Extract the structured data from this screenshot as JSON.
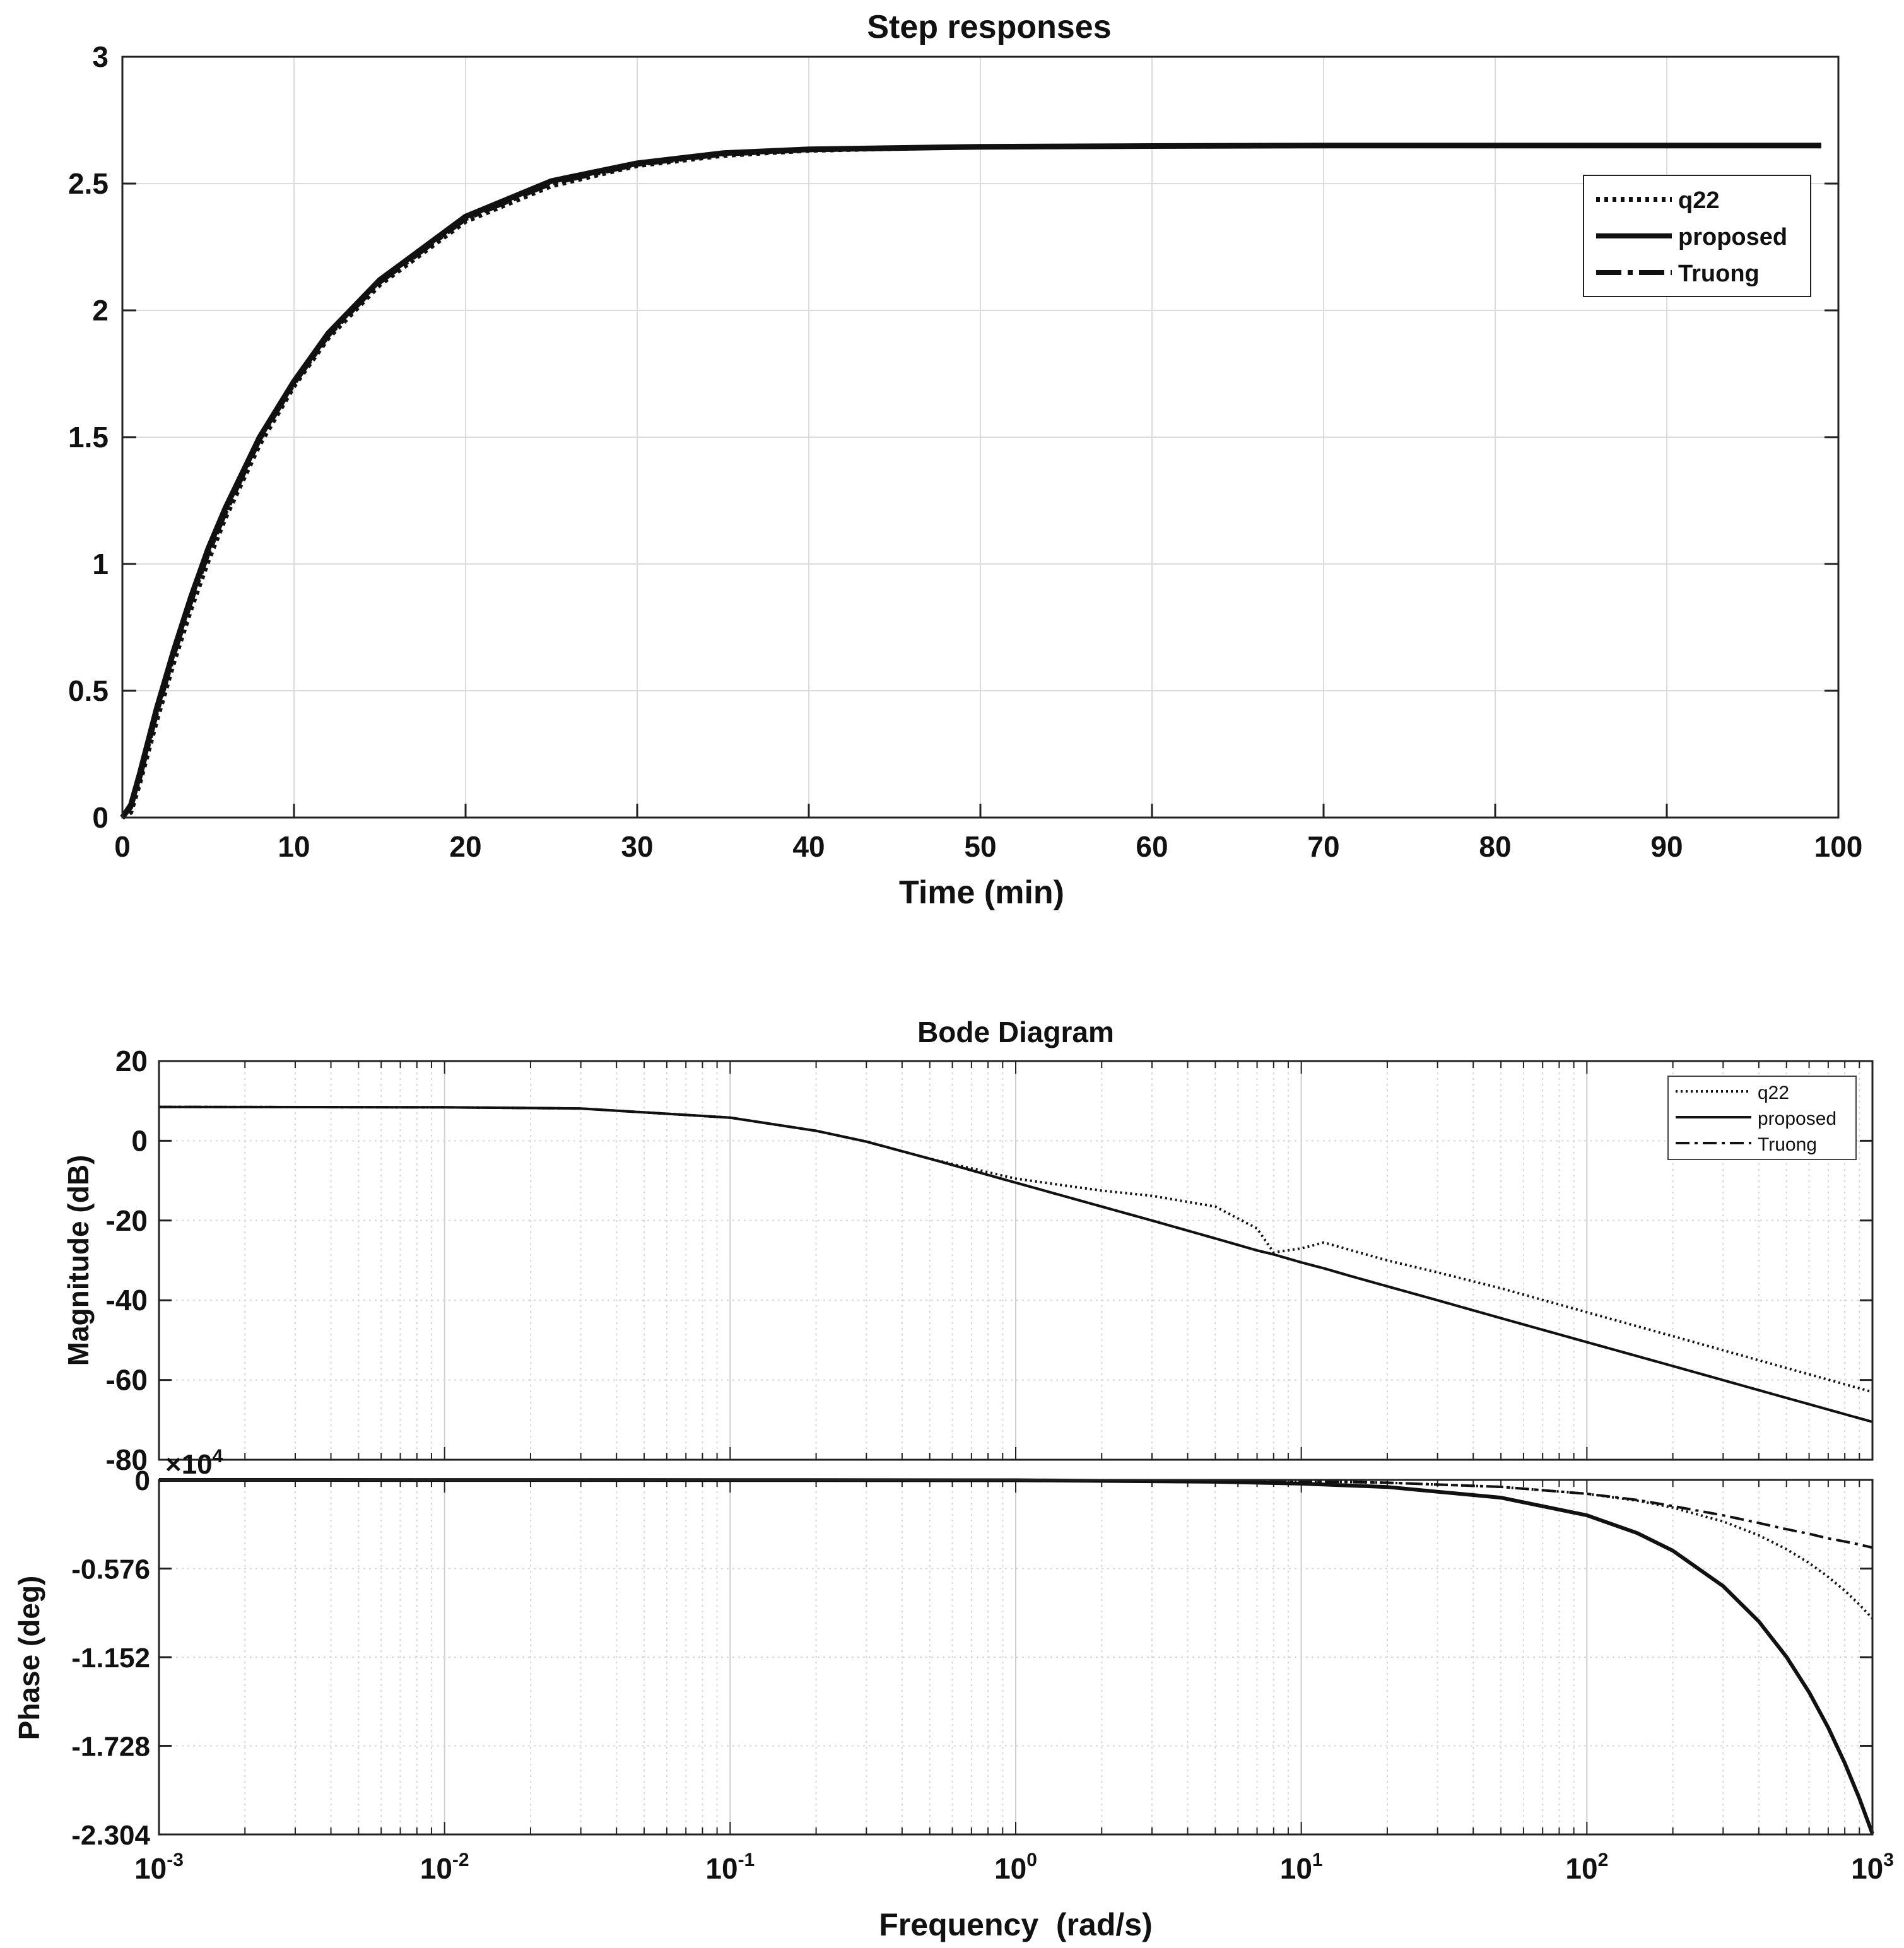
{
  "chart_data": [
    {
      "type": "line",
      "title": "Step responses",
      "xlabel": "Time (min)",
      "ylabel": "",
      "xlim": [
        0,
        100
      ],
      "ylim": [
        0,
        3
      ],
      "xticks": [
        0,
        10,
        20,
        30,
        40,
        50,
        60,
        70,
        80,
        90,
        100
      ],
      "xtick_labels": [
        "0",
        "10",
        "20",
        "30",
        "40",
        "50",
        "60",
        "70",
        "80",
        "90",
        "100"
      ],
      "yticks": [
        0,
        0.5,
        1,
        1.5,
        2,
        2.5,
        3
      ],
      "ytick_labels": [
        "0",
        "0.5",
        "1",
        "1.5",
        "2",
        "2.5",
        "3"
      ],
      "grid": true,
      "legend_position": "top-right",
      "x": [
        0,
        0.5,
        1,
        2,
        3,
        4,
        5,
        6,
        8,
        10,
        12,
        15,
        20,
        25,
        30,
        35,
        40,
        50,
        60,
        70,
        80,
        90,
        99
      ],
      "series": [
        {
          "name": "q22",
          "style": "dotted",
          "values": [
            0,
            0.02,
            0.13,
            0.38,
            0.61,
            0.82,
            1.01,
            1.18,
            1.47,
            1.7,
            1.89,
            2.1,
            2.35,
            2.49,
            2.57,
            2.61,
            2.63,
            2.645,
            2.648,
            2.65,
            2.65,
            2.65,
            2.65
          ]
        },
        {
          "name": "proposed",
          "style": "solid",
          "values": [
            0,
            0.05,
            0.17,
            0.43,
            0.66,
            0.87,
            1.06,
            1.22,
            1.5,
            1.72,
            1.91,
            2.12,
            2.37,
            2.51,
            2.58,
            2.62,
            2.635,
            2.645,
            2.648,
            2.65,
            2.65,
            2.65,
            2.65
          ]
        },
        {
          "name": "Truong",
          "style": "dashdot",
          "values": [
            0,
            0.04,
            0.15,
            0.41,
            0.64,
            0.85,
            1.04,
            1.2,
            1.49,
            1.71,
            1.9,
            2.11,
            2.36,
            2.5,
            2.575,
            2.615,
            2.632,
            2.645,
            2.648,
            2.65,
            2.65,
            2.65,
            2.65
          ]
        }
      ]
    },
    {
      "type": "line",
      "title": "Bode Diagram",
      "subplot": "magnitude",
      "xlabel": "Frequency  (rad/s)",
      "ylabel": "Magnitude (dB)",
      "xscale": "log",
      "xlim": [
        0.001,
        1000
      ],
      "ylim": [
        -80,
        20
      ],
      "yticks": [
        20,
        0,
        -20,
        -40,
        -60,
        -80
      ],
      "ytick_labels": [
        "20",
        "0",
        "-20",
        "-40",
        "-60",
        "-80"
      ],
      "grid": true,
      "legend_position": "top-right",
      "x": [
        0.001,
        0.01,
        0.03,
        0.1,
        0.2,
        0.3,
        0.5,
        1,
        2,
        3,
        5,
        7,
        8,
        10,
        12,
        15,
        20,
        30,
        50,
        100,
        200,
        500,
        1000
      ],
      "series": [
        {
          "name": "q22",
          "style": "dotted",
          "values": [
            8.5,
            8.4,
            8.1,
            5.8,
            2.5,
            -0.2,
            -4.5,
            -9.5,
            -12.5,
            -13.8,
            -16.5,
            -22,
            -28,
            -27,
            -25.5,
            -27.5,
            -30,
            -33,
            -37,
            -43,
            -49,
            -57,
            -63
          ]
        },
        {
          "name": "proposed",
          "style": "solid",
          "values": [
            8.5,
            8.4,
            8.1,
            5.8,
            2.5,
            -0.2,
            -4.5,
            -10.5,
            -16.5,
            -20,
            -24.5,
            -27.5,
            -28.5,
            -30.5,
            -32,
            -34,
            -36.5,
            -40,
            -44.5,
            -50.5,
            -56.5,
            -64.5,
            -70.5
          ]
        },
        {
          "name": "Truong",
          "style": "dashdot",
          "values": [
            8.5,
            8.4,
            8.1,
            5.8,
            2.5,
            -0.2,
            -4.5,
            -10.5,
            -16.5,
            -20,
            -24.5,
            -27.5,
            -28.5,
            -30.5,
            -32,
            -34,
            -36.5,
            -40,
            -44.5,
            -50.5,
            -56.5,
            -64.5,
            -70.5
          ]
        }
      ]
    },
    {
      "type": "line",
      "subplot": "phase",
      "xlabel": "Frequency  (rad/s)",
      "ylabel": "Phase (deg)",
      "xscale": "log",
      "xlim": [
        0.001,
        1000
      ],
      "xtick_bases": [
        "10",
        "10",
        "10",
        "10",
        "10",
        "10",
        "10"
      ],
      "xtick_exponents": [
        "-3",
        "-2",
        "-1",
        "0",
        "1",
        "2",
        "3"
      ],
      "ylim": [
        -2.304,
        0
      ],
      "y_multiplier": "×10",
      "y_multiplier_exp": "4",
      "yticks": [
        0,
        -0.576,
        -1.152,
        -1.728,
        -2.304
      ],
      "ytick_labels": [
        "0",
        "-0.576",
        "-1.152",
        "-1.728",
        "-2.304"
      ],
      "grid": true,
      "x": [
        0.001,
        0.1,
        1,
        5,
        10,
        20,
        50,
        100,
        150,
        200,
        300,
        400,
        500,
        600,
        700,
        800,
        900,
        1000
      ],
      "series": [
        {
          "name": "q22",
          "style": "dotted",
          "values": [
            0,
            -0.0001,
            -0.0009,
            -0.0045,
            -0.009,
            -0.018,
            -0.045,
            -0.09,
            -0.135,
            -0.18,
            -0.27,
            -0.36,
            -0.45,
            -0.54,
            -0.63,
            -0.72,
            -0.81,
            -0.9
          ]
        },
        {
          "name": "proposed",
          "style": "solid",
          "values": [
            0,
            -0.001,
            -0.002,
            -0.012,
            -0.024,
            -0.046,
            -0.115,
            -0.23,
            -0.345,
            -0.46,
            -0.69,
            -0.92,
            -1.15,
            -1.38,
            -1.61,
            -1.84,
            -2.07,
            -2.3
          ]
        },
        {
          "name": "Truong",
          "style": "dashdot",
          "values": [
            0,
            -0.0005,
            -0.0015,
            -0.005,
            -0.009,
            -0.018,
            -0.045,
            -0.09,
            -0.13,
            -0.17,
            -0.23,
            -0.28,
            -0.32,
            -0.35,
            -0.38,
            -0.4,
            -0.42,
            -0.44
          ]
        }
      ]
    }
  ]
}
